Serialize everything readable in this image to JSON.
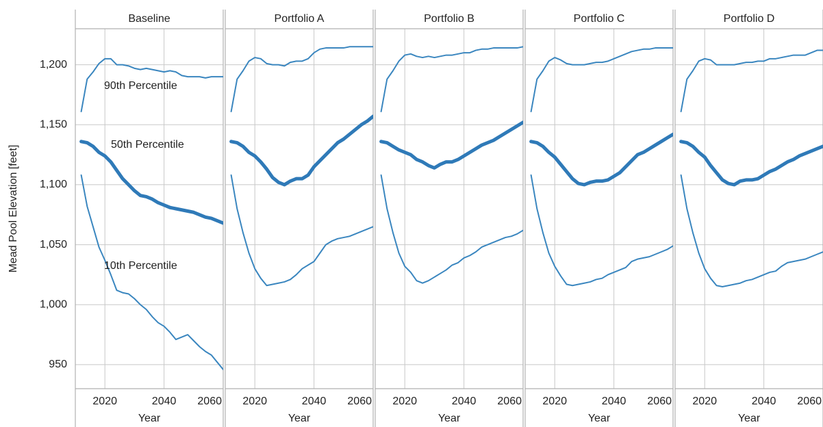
{
  "chart_data": [
    {
      "type": "line",
      "title": "Baseline",
      "ylabel": "Mead Pool Elevation  [feet]",
      "xlabel": "Year",
      "xlim": [
        2010,
        2060
      ],
      "xticks": [
        2020,
        2040,
        2060
      ],
      "ylim": [
        930,
        1230
      ],
      "yticks": [
        {
          "value": 950,
          "label": "950"
        },
        {
          "value": 1000,
          "label": "1,000"
        },
        {
          "value": 1050,
          "label": "1,050"
        },
        {
          "value": 1100,
          "label": "1,100"
        },
        {
          "value": 1150,
          "label": "1,150"
        },
        {
          "value": 1200,
          "label": "1,200"
        }
      ],
      "grid": true,
      "annotations": [
        "90th Percentile",
        "50th Percentile",
        "10th Percentile"
      ],
      "x": [
        2012,
        2014,
        2016,
        2018,
        2020,
        2022,
        2024,
        2026,
        2028,
        2030,
        2032,
        2034,
        2036,
        2038,
        2040,
        2042,
        2044,
        2046,
        2048,
        2050,
        2052,
        2054,
        2056,
        2058,
        2060
      ],
      "series": [
        {
          "color": "#3a86bf",
          "linewidth": 2,
          "values": [
            1161,
            1188,
            1194,
            1201,
            1205,
            1205,
            1200,
            1200,
            1199,
            1197,
            1196,
            1197,
            1196,
            1195,
            1194,
            1195,
            1194,
            1191,
            1190,
            1190,
            1190,
            1189,
            1190,
            1190,
            1190
          ]
        },
        {
          "color": "#2f7ab8",
          "linewidth": 5,
          "values": [
            1136,
            1135,
            1132,
            1127,
            1124,
            1119,
            1112,
            1105,
            1100,
            1095,
            1091,
            1090,
            1088,
            1085,
            1083,
            1081,
            1080,
            1079,
            1078,
            1077,
            1075,
            1073,
            1072,
            1070,
            1068
          ]
        },
        {
          "color": "#3a86bf",
          "linewidth": 2,
          "values": [
            1108,
            1082,
            1065,
            1048,
            1037,
            1025,
            1012,
            1010,
            1009,
            1005,
            1000,
            996,
            990,
            985,
            982,
            977,
            971,
            973,
            975,
            970,
            965,
            961,
            958,
            952,
            946
          ]
        }
      ]
    },
    {
      "type": "line",
      "title": "Portfolio A",
      "xlabel": "Year",
      "xlim": [
        2010,
        2060
      ],
      "xticks": [
        2020,
        2040,
        2060
      ],
      "x": [
        2012,
        2014,
        2016,
        2018,
        2020,
        2022,
        2024,
        2026,
        2028,
        2030,
        2032,
        2034,
        2036,
        2038,
        2040,
        2042,
        2044,
        2046,
        2048,
        2050,
        2052,
        2054,
        2056,
        2058,
        2060
      ],
      "series": [
        {
          "color": "#3a86bf",
          "linewidth": 2,
          "values": [
            1161,
            1188,
            1195,
            1203,
            1206,
            1205,
            1201,
            1200,
            1200,
            1199,
            1202,
            1203,
            1203,
            1205,
            1210,
            1213,
            1214,
            1214,
            1214,
            1214,
            1215,
            1215,
            1215,
            1215,
            1215
          ]
        },
        {
          "color": "#2f7ab8",
          "linewidth": 5,
          "values": [
            1136,
            1135,
            1132,
            1127,
            1124,
            1119,
            1113,
            1106,
            1102,
            1100,
            1103,
            1105,
            1105,
            1108,
            1115,
            1120,
            1125,
            1130,
            1135,
            1138,
            1142,
            1146,
            1150,
            1153,
            1157
          ]
        },
        {
          "color": "#3a86bf",
          "linewidth": 2,
          "values": [
            1108,
            1080,
            1060,
            1043,
            1030,
            1022,
            1016,
            1017,
            1018,
            1019,
            1021,
            1025,
            1030,
            1033,
            1036,
            1043,
            1050,
            1053,
            1055,
            1056,
            1057,
            1059,
            1061,
            1063,
            1065
          ]
        }
      ]
    },
    {
      "type": "line",
      "title": "Portfolio B",
      "xlabel": "Year",
      "xlim": [
        2010,
        2060
      ],
      "xticks": [
        2020,
        2040,
        2060
      ],
      "x": [
        2012,
        2014,
        2016,
        2018,
        2020,
        2022,
        2024,
        2026,
        2028,
        2030,
        2032,
        2034,
        2036,
        2038,
        2040,
        2042,
        2044,
        2046,
        2048,
        2050,
        2052,
        2054,
        2056,
        2058,
        2060
      ],
      "series": [
        {
          "color": "#3a86bf",
          "linewidth": 2,
          "values": [
            1161,
            1188,
            1195,
            1203,
            1208,
            1209,
            1207,
            1206,
            1207,
            1206,
            1207,
            1208,
            1208,
            1209,
            1210,
            1210,
            1212,
            1213,
            1213,
            1214,
            1214,
            1214,
            1214,
            1214,
            1215
          ]
        },
        {
          "color": "#2f7ab8",
          "linewidth": 5,
          "values": [
            1136,
            1135,
            1132,
            1129,
            1127,
            1125,
            1121,
            1119,
            1116,
            1114,
            1117,
            1119,
            1119,
            1121,
            1124,
            1127,
            1130,
            1133,
            1135,
            1137,
            1140,
            1143,
            1146,
            1149,
            1152
          ]
        },
        {
          "color": "#3a86bf",
          "linewidth": 2,
          "values": [
            1108,
            1080,
            1060,
            1043,
            1032,
            1027,
            1020,
            1018,
            1020,
            1023,
            1026,
            1029,
            1033,
            1035,
            1039,
            1041,
            1044,
            1048,
            1050,
            1052,
            1054,
            1056,
            1057,
            1059,
            1062
          ]
        }
      ]
    },
    {
      "type": "line",
      "title": "Portfolio C",
      "xlabel": "Year",
      "xlim": [
        2010,
        2060
      ],
      "xticks": [
        2020,
        2040,
        2060
      ],
      "x": [
        2012,
        2014,
        2016,
        2018,
        2020,
        2022,
        2024,
        2026,
        2028,
        2030,
        2032,
        2034,
        2036,
        2038,
        2040,
        2042,
        2044,
        2046,
        2048,
        2050,
        2052,
        2054,
        2056,
        2058,
        2060
      ],
      "series": [
        {
          "color": "#3a86bf",
          "linewidth": 2,
          "values": [
            1161,
            1188,
            1195,
            1203,
            1206,
            1204,
            1201,
            1200,
            1200,
            1200,
            1201,
            1202,
            1202,
            1203,
            1205,
            1207,
            1209,
            1211,
            1212,
            1213,
            1213,
            1214,
            1214,
            1214,
            1214
          ]
        },
        {
          "color": "#2f7ab8",
          "linewidth": 5,
          "values": [
            1136,
            1135,
            1132,
            1127,
            1123,
            1117,
            1111,
            1105,
            1101,
            1100,
            1102,
            1103,
            1103,
            1104,
            1107,
            1110,
            1115,
            1120,
            1125,
            1127,
            1130,
            1133,
            1136,
            1139,
            1142
          ]
        },
        {
          "color": "#3a86bf",
          "linewidth": 2,
          "values": [
            1108,
            1080,
            1060,
            1043,
            1032,
            1024,
            1017,
            1016,
            1017,
            1018,
            1019,
            1021,
            1022,
            1025,
            1027,
            1029,
            1031,
            1036,
            1038,
            1039,
            1040,
            1042,
            1044,
            1046,
            1049
          ]
        }
      ]
    },
    {
      "type": "line",
      "title": "Portfolio D",
      "xlabel": "Year",
      "xlim": [
        2010,
        2060
      ],
      "xticks": [
        2020,
        2040,
        2060
      ],
      "x": [
        2012,
        2014,
        2016,
        2018,
        2020,
        2022,
        2024,
        2026,
        2028,
        2030,
        2032,
        2034,
        2036,
        2038,
        2040,
        2042,
        2044,
        2046,
        2048,
        2050,
        2052,
        2054,
        2056,
        2058,
        2060
      ],
      "series": [
        {
          "color": "#3a86bf",
          "linewidth": 2,
          "values": [
            1161,
            1188,
            1195,
            1203,
            1205,
            1204,
            1200,
            1200,
            1200,
            1200,
            1201,
            1202,
            1202,
            1203,
            1203,
            1205,
            1205,
            1206,
            1207,
            1208,
            1208,
            1208,
            1210,
            1212,
            1212
          ]
        },
        {
          "color": "#2f7ab8",
          "linewidth": 5,
          "values": [
            1136,
            1135,
            1132,
            1127,
            1123,
            1116,
            1110,
            1104,
            1101,
            1100,
            1103,
            1104,
            1104,
            1105,
            1108,
            1111,
            1113,
            1116,
            1119,
            1121,
            1124,
            1126,
            1128,
            1130,
            1132
          ]
        },
        {
          "color": "#3a86bf",
          "linewidth": 2,
          "values": [
            1108,
            1080,
            1060,
            1043,
            1030,
            1022,
            1016,
            1015,
            1016,
            1017,
            1018,
            1020,
            1021,
            1023,
            1025,
            1027,
            1028,
            1032,
            1035,
            1036,
            1037,
            1038,
            1040,
            1042,
            1044
          ]
        }
      ]
    }
  ]
}
